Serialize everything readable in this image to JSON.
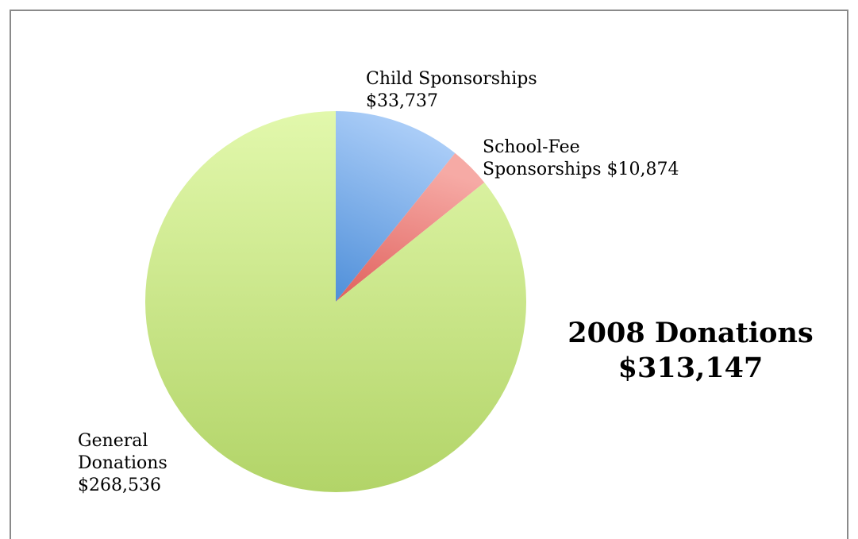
{
  "chart_data": {
    "type": "pie",
    "title": "2008 Donations",
    "subtitle": "$313,147",
    "start_angle_deg": 0,
    "direction": "clockwise",
    "slices": [
      {
        "name": "Child Sponsorships",
        "value": 33737,
        "value_label": "$33,737",
        "color": "#8fb8ee"
      },
      {
        "name": "School-Fee Sponsorships",
        "value": 10874,
        "value_label": "$10,874",
        "color": "#f08e8a"
      },
      {
        "name": "General Donations",
        "value": 268536,
        "value_label": "$268,536",
        "color": "#cfe88f"
      }
    ]
  },
  "labels": {
    "child": {
      "line1": "Child Sponsorships",
      "line2": "$33,737"
    },
    "school": {
      "line1": "School-Fee",
      "line2": "Sponsorships $10,874"
    },
    "general": {
      "line1": "General",
      "line2": "Donations",
      "line3": "$268,536"
    }
  }
}
